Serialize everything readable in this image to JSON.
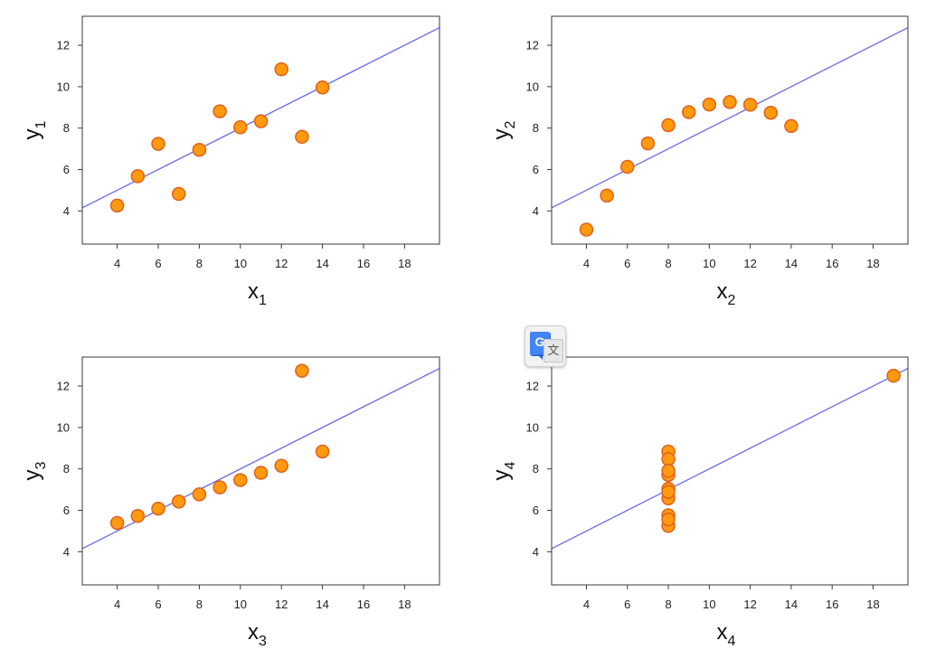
{
  "chart_data": [
    {
      "type": "scatter",
      "xlabel": "x",
      "xlabel_sub": "1",
      "ylabel": "y",
      "ylabel_sub": "1",
      "xlim": [
        2.3,
        19.7
      ],
      "ylim": [
        2.4,
        13.4
      ],
      "xticks": [
        "4",
        "6",
        "8",
        "10",
        "12",
        "14",
        "16",
        "18"
      ],
      "yticks": [
        "4",
        "6",
        "8",
        "10",
        "12"
      ],
      "x": [
        10,
        8,
        13,
        9,
        11,
        14,
        6,
        4,
        12,
        7,
        5
      ],
      "y": [
        8.04,
        6.95,
        7.58,
        8.81,
        8.33,
        9.96,
        7.24,
        4.26,
        10.84,
        4.82,
        5.68
      ],
      "fit": {
        "slope": 0.5,
        "intercept": 3.0
      },
      "point_color": "#ff9a0f",
      "point_edge_color": "#e0601a",
      "line_color": "#7070e6"
    },
    {
      "type": "scatter",
      "xlabel": "x",
      "xlabel_sub": "2",
      "ylabel": "y",
      "ylabel_sub": "2",
      "xlim": [
        2.3,
        19.7
      ],
      "ylim": [
        2.4,
        13.4
      ],
      "xticks": [
        "4",
        "6",
        "8",
        "10",
        "12",
        "14",
        "16",
        "18"
      ],
      "yticks": [
        "4",
        "6",
        "8",
        "10",
        "12"
      ],
      "x": [
        10,
        8,
        13,
        9,
        11,
        14,
        6,
        4,
        12,
        7,
        5
      ],
      "y": [
        9.14,
        8.14,
        8.74,
        8.77,
        9.26,
        8.1,
        6.13,
        3.1,
        9.13,
        7.26,
        4.74
      ],
      "fit": {
        "slope": 0.5,
        "intercept": 3.0
      },
      "point_color": "#ff9a0f",
      "point_edge_color": "#e0601a",
      "line_color": "#7070e6"
    },
    {
      "type": "scatter",
      "xlabel": "x",
      "xlabel_sub": "3",
      "ylabel": "y",
      "ylabel_sub": "3",
      "xlim": [
        2.3,
        19.7
      ],
      "ylim": [
        2.4,
        13.4
      ],
      "xticks": [
        "4",
        "6",
        "8",
        "10",
        "12",
        "14",
        "16",
        "18"
      ],
      "yticks": [
        "4",
        "6",
        "8",
        "10",
        "12"
      ],
      "x": [
        10,
        8,
        13,
        9,
        11,
        14,
        6,
        4,
        12,
        7,
        5
      ],
      "y": [
        7.46,
        6.77,
        12.74,
        7.11,
        7.81,
        8.84,
        6.08,
        5.39,
        8.15,
        6.42,
        5.73
      ],
      "fit": {
        "slope": 0.5,
        "intercept": 3.0
      },
      "point_color": "#ff9a0f",
      "point_edge_color": "#e0601a",
      "line_color": "#7070e6"
    },
    {
      "type": "scatter",
      "xlabel": "x",
      "xlabel_sub": "4",
      "ylabel": "y",
      "ylabel_sub": "4",
      "xlim": [
        2.3,
        19.7
      ],
      "ylim": [
        2.4,
        13.4
      ],
      "xticks": [
        "4",
        "6",
        "8",
        "10",
        "12",
        "14",
        "16",
        "18"
      ],
      "yticks": [
        "4",
        "6",
        "8",
        "10",
        "12"
      ],
      "x": [
        8,
        8,
        8,
        8,
        8,
        8,
        8,
        19,
        8,
        8,
        8
      ],
      "y": [
        6.58,
        5.76,
        7.71,
        8.84,
        8.47,
        7.04,
        5.25,
        12.5,
        5.56,
        7.91,
        6.89
      ],
      "fit": {
        "slope": 0.5,
        "intercept": 3.0
      },
      "point_color": "#ff9a0f",
      "point_edge_color": "#e0601a",
      "line_color": "#7070e6"
    }
  ],
  "widget": {
    "icon": "google-translate-icon",
    "g_letter": "G",
    "wen_glyph": "文"
  }
}
